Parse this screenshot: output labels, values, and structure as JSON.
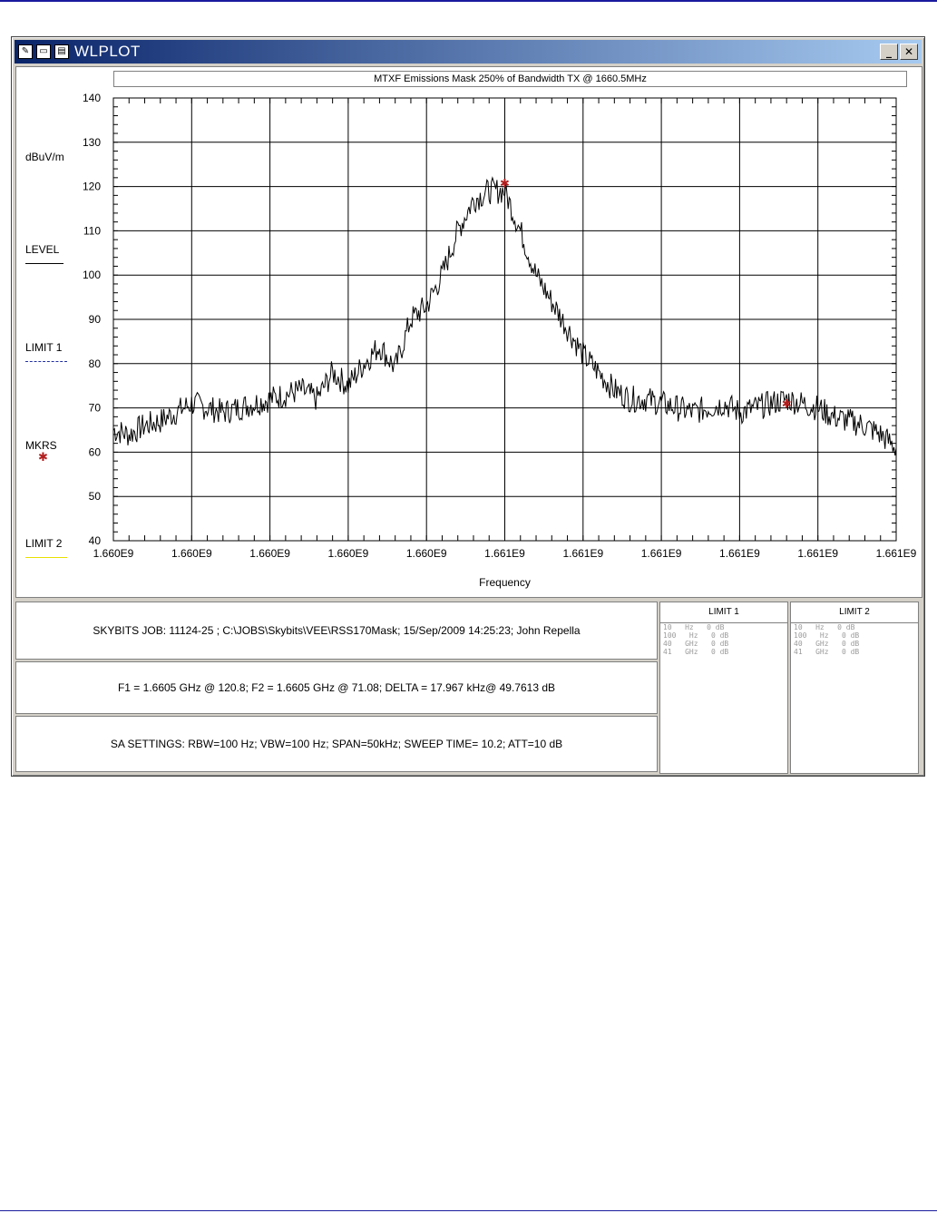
{
  "window": {
    "title": "WLPLOT",
    "minimize_label": "_",
    "close_label": "✕",
    "icons": [
      "app-icon",
      "copy-icon",
      "print-icon"
    ]
  },
  "chart_data": {
    "type": "line",
    "title": "MTXF Emissions Mask 250% of Bandwidth TX @ 1660.5MHz",
    "xlabel": "Frequency",
    "ylabel": "dBuV/m",
    "ylim": [
      40,
      140
    ],
    "y_ticks": [
      140,
      130,
      120,
      110,
      100,
      90,
      80,
      70,
      60,
      50,
      40
    ],
    "x_tick_labels": [
      "1.660E9",
      "1.660E9",
      "1.660E9",
      "1.660E9",
      "1.660E9",
      "1.661E9",
      "1.661E9",
      "1.661E9",
      "1.661E9",
      "1.661E9",
      "1.661E9"
    ],
    "grid": true,
    "series": [
      {
        "name": "LEVEL",
        "color": "#000000",
        "x_frac": [
          0,
          0.02,
          0.04,
          0.06,
          0.08,
          0.1,
          0.12,
          0.14,
          0.16,
          0.18,
          0.2,
          0.22,
          0.24,
          0.26,
          0.28,
          0.3,
          0.32,
          0.34,
          0.36,
          0.38,
          0.4,
          0.42,
          0.44,
          0.46,
          0.48,
          0.5,
          0.52,
          0.54,
          0.56,
          0.58,
          0.6,
          0.62,
          0.64,
          0.66,
          0.68,
          0.7,
          0.72,
          0.74,
          0.76,
          0.78,
          0.8,
          0.82,
          0.84,
          0.86,
          0.88,
          0.9,
          0.92,
          0.94,
          0.96,
          0.98,
          1.0
        ],
        "values": [
          65,
          64,
          66,
          67,
          69,
          71,
          70,
          69,
          70,
          71,
          72,
          73,
          74,
          72,
          78,
          75,
          80,
          84,
          79,
          90,
          93,
          100,
          110,
          117,
          119,
          119,
          110,
          100,
          94,
          88,
          82,
          78,
          74,
          72,
          72,
          71,
          70,
          69,
          70,
          71,
          69,
          70,
          71,
          72,
          71,
          70,
          68,
          67,
          66,
          64,
          61
        ]
      }
    ],
    "markers": [
      {
        "x_frac": 0.5,
        "value": 120.8
      },
      {
        "x_frac": 0.86,
        "value": 71.08
      }
    ],
    "legend": {
      "level_label": "LEVEL",
      "limit1_label": "LIMIT 1",
      "markers_label": "MKRS",
      "limit2_label": "LIMIT 2",
      "level_color": "#000000",
      "limit1_color": "#1f2fa0",
      "markers_color": "#b21e1e",
      "limit2_color": "#e8e000"
    }
  },
  "info": {
    "job_line": "SKYBITS  JOB: 11124-25   ;  C:\\JOBS\\Skybits\\VEE\\RSS170Mask;     15/Sep/2009 14:25:23; John Repella",
    "markers_line": "F1 = 1.6605 GHz @ 120.8;   F2 = 1.6605 GHz @ 71.08;   DELTA = 17.967 kHz@ 49.7613 dB",
    "sa_line": "SA SETTINGS: RBW=100 Hz; VBW=100 Hz; SPAN=50kHz; SWEEP TIME= 10.2; ATT=10 dB"
  },
  "limits": {
    "limit1": {
      "title": "LIMIT 1",
      "rows": [
        "10   Hz   0 dB",
        "100   Hz   0 dB",
        "40   GHz   0 dB",
        "41   GHz   0 dB"
      ]
    },
    "limit2": {
      "title": "LIMIT 2",
      "rows": [
        "10   Hz   0 dB",
        "100   Hz   0 dB",
        "40   GHz   0 dB",
        "41   GHz   0 dB"
      ]
    }
  }
}
